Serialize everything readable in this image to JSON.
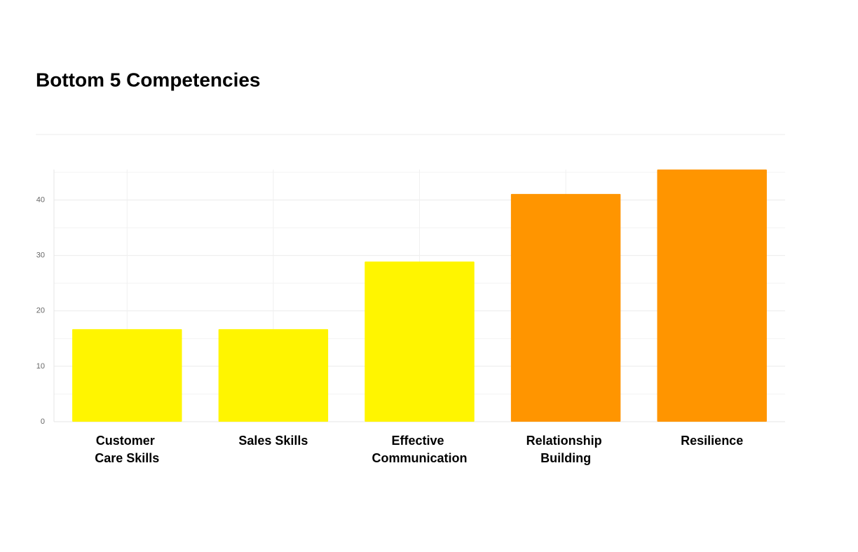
{
  "chart_data": {
    "type": "bar",
    "title": "Bottom 5 Competencies",
    "categories": [
      "Customer Care Skills",
      "Sales Skills",
      "Effective Communication",
      "Relationship Building",
      "Resilience"
    ],
    "values": [
      16.7,
      16.7,
      28.9,
      41.1,
      45.5
    ],
    "colors": [
      "#fff500",
      "#fff500",
      "#fff500",
      "#ff9500",
      "#ff9500"
    ],
    "ylim": [
      0,
      45.5
    ],
    "yticks": [
      0,
      10,
      20,
      30,
      40
    ],
    "minor_yticks": [
      5,
      15,
      25,
      35,
      45
    ],
    "grid": true
  }
}
